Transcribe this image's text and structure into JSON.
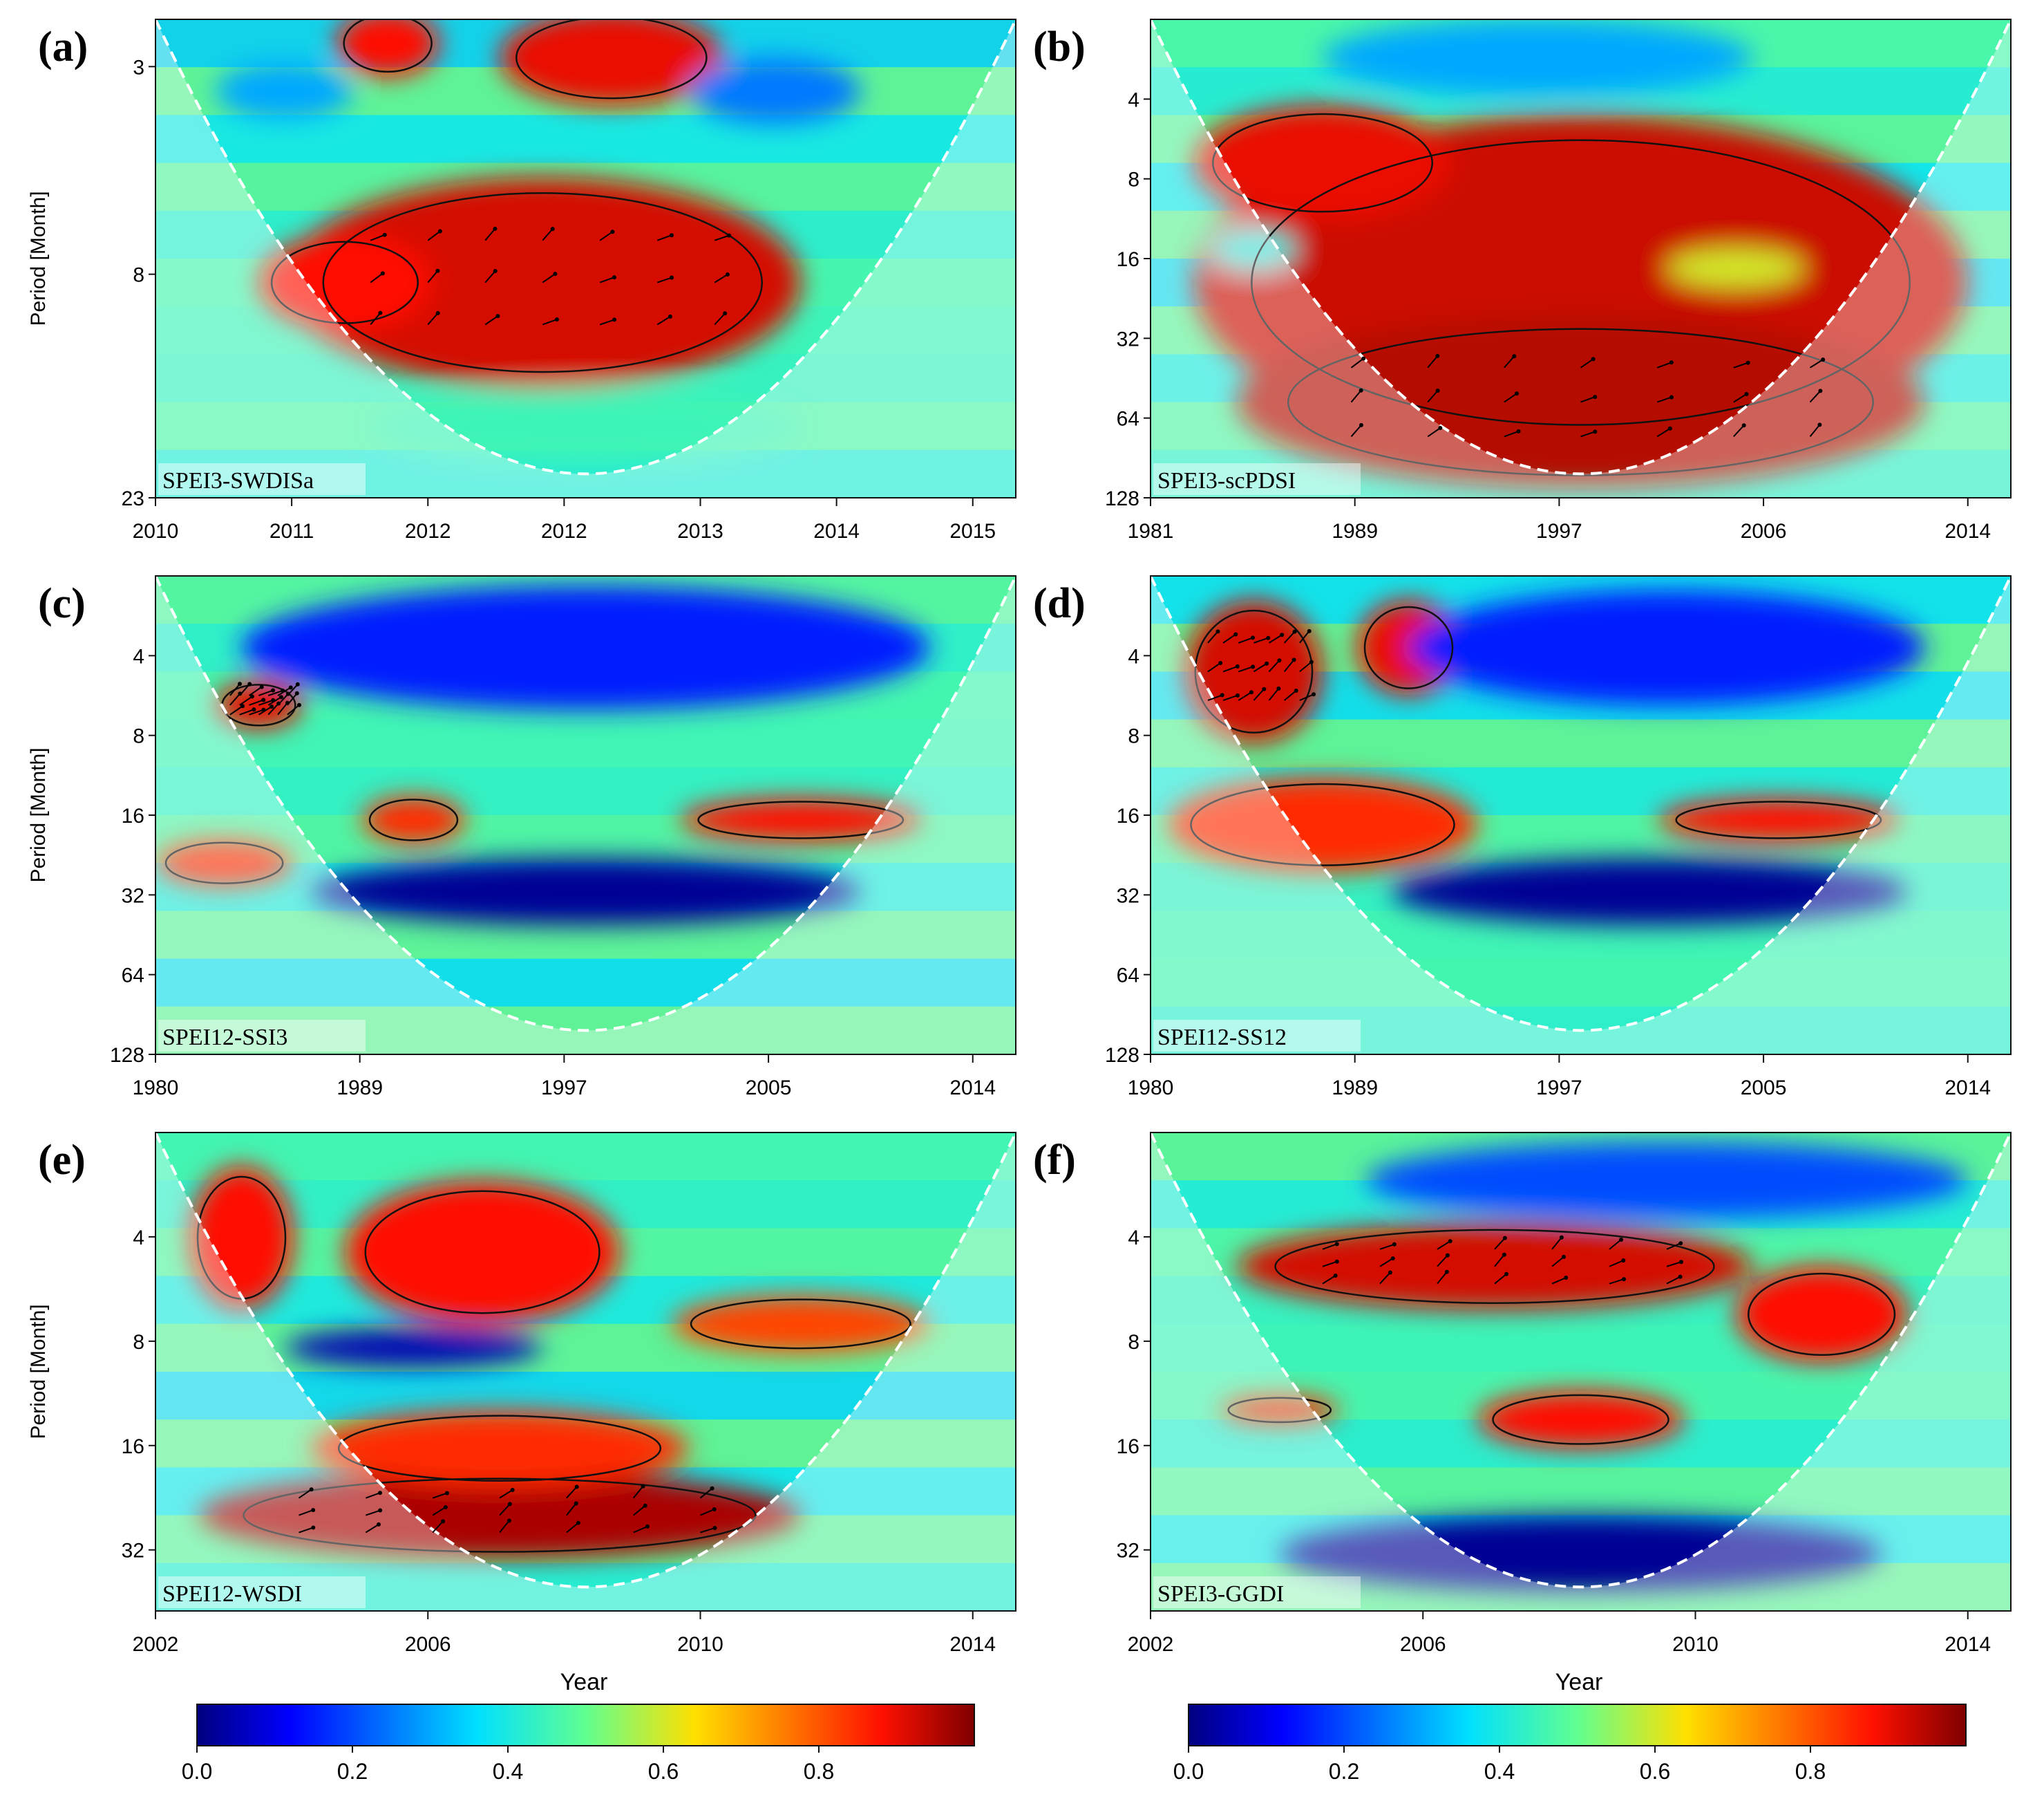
{
  "figure": {
    "y_axis_title": "Period [Month]",
    "x_axis_title": "Year"
  },
  "colorbars": [
    {
      "ticks": [
        "0.0",
        "0.2",
        "0.4",
        "0.6",
        "0.8"
      ],
      "range": [
        0,
        1
      ]
    },
    {
      "ticks": [
        "0.0",
        "0.2",
        "0.4",
        "0.6",
        "0.8"
      ],
      "range": [
        0,
        1
      ]
    }
  ],
  "chart_data": [
    {
      "type": "heatmap",
      "panel_label": "(a)",
      "title": "SPEI3-SWDISa",
      "xlabel": "",
      "ylabel": "Period [Month]",
      "x_ticks": [
        "2010",
        "2011",
        "2012",
        "2012",
        "2013",
        "2014",
        "2015"
      ],
      "y_ticks": [
        "3",
        "8",
        "23"
      ],
      "y_range": [
        2.4,
        23
      ],
      "scale": "wavelet coherence 0-1",
      "blobs": [
        {
          "x": 0.45,
          "y": 0.55,
          "rx": 0.3,
          "ry": 0.22,
          "value": 0.92
        },
        {
          "x": 0.22,
          "y": 0.55,
          "rx": 0.1,
          "ry": 0.1,
          "value": 0.88
        },
        {
          "x": 0.53,
          "y": 0.08,
          "rx": 0.13,
          "ry": 0.1,
          "value": 0.9
        },
        {
          "x": 0.27,
          "y": 0.05,
          "rx": 0.06,
          "ry": 0.07,
          "value": 0.88
        },
        {
          "x": 0.15,
          "y": 0.15,
          "rx": 0.08,
          "ry": 0.06,
          "value": 0.3
        },
        {
          "x": 0.72,
          "y": 0.15,
          "rx": 0.1,
          "ry": 0.07,
          "value": 0.25
        },
        {
          "x": 0.5,
          "y": 0.85,
          "rx": 0.25,
          "ry": 0.08,
          "value": 0.45
        }
      ]
    },
    {
      "type": "heatmap",
      "panel_label": "(b)",
      "title": "SPEI3-scPDSI",
      "xlabel": "",
      "ylabel": "",
      "x_ticks": [
        "1981",
        "1989",
        "1997",
        "2006",
        "2014"
      ],
      "y_ticks": [
        "4",
        "8",
        "16",
        "32",
        "64",
        "128"
      ],
      "y_range": [
        2,
        128
      ],
      "scale": "wavelet coherence 0-1",
      "blobs": [
        {
          "x": 0.5,
          "y": 0.55,
          "rx": 0.45,
          "ry": 0.35,
          "value": 0.93
        },
        {
          "x": 0.5,
          "y": 0.8,
          "rx": 0.4,
          "ry": 0.18,
          "value": 0.95
        },
        {
          "x": 0.2,
          "y": 0.3,
          "rx": 0.15,
          "ry": 0.12,
          "value": 0.9
        },
        {
          "x": 0.68,
          "y": 0.52,
          "rx": 0.08,
          "ry": 0.04,
          "value": 0.6
        },
        {
          "x": 0.45,
          "y": 0.08,
          "rx": 0.25,
          "ry": 0.08,
          "value": 0.3
        },
        {
          "x": 0.12,
          "y": 0.48,
          "rx": 0.05,
          "ry": 0.04,
          "value": 0.4
        }
      ]
    },
    {
      "type": "heatmap",
      "panel_label": "(c)",
      "title": "SPEI12-SSI3",
      "xlabel": "",
      "ylabel": "Period [Month]",
      "x_ticks": [
        "1980",
        "1989",
        "1997",
        "2005",
        "2014"
      ],
      "y_ticks": [
        "4",
        "8",
        "16",
        "32",
        "64",
        "128"
      ],
      "y_range": [
        2,
        128
      ],
      "scale": "wavelet coherence 0-1",
      "blobs": [
        {
          "x": 0.5,
          "y": 0.66,
          "rx": 0.32,
          "ry": 0.07,
          "value": 0.02
        },
        {
          "x": 0.12,
          "y": 0.27,
          "rx": 0.05,
          "ry": 0.05,
          "value": 0.9
        },
        {
          "x": 0.3,
          "y": 0.51,
          "rx": 0.06,
          "ry": 0.05,
          "value": 0.85
        },
        {
          "x": 0.75,
          "y": 0.51,
          "rx": 0.14,
          "ry": 0.045,
          "value": 0.88
        },
        {
          "x": 0.08,
          "y": 0.6,
          "rx": 0.08,
          "ry": 0.05,
          "value": 0.85
        },
        {
          "x": 0.5,
          "y": 0.15,
          "rx": 0.4,
          "ry": 0.13,
          "value": 0.15
        }
      ]
    },
    {
      "type": "heatmap",
      "panel_label": "(d)",
      "title": "SPEI12-SS12",
      "xlabel": "",
      "ylabel": "",
      "x_ticks": [
        "1980",
        "1989",
        "1997",
        "2005",
        "2014"
      ],
      "y_ticks": [
        "4",
        "8",
        "16",
        "32",
        "64",
        "128"
      ],
      "y_range": [
        2,
        128
      ],
      "scale": "wavelet coherence 0-1",
      "blobs": [
        {
          "x": 0.58,
          "y": 0.66,
          "rx": 0.3,
          "ry": 0.07,
          "value": 0.02
        },
        {
          "x": 0.12,
          "y": 0.2,
          "rx": 0.08,
          "ry": 0.15,
          "value": 0.92
        },
        {
          "x": 0.2,
          "y": 0.52,
          "rx": 0.18,
          "ry": 0.1,
          "value": 0.85
        },
        {
          "x": 0.3,
          "y": 0.15,
          "rx": 0.06,
          "ry": 0.1,
          "value": 0.9
        },
        {
          "x": 0.73,
          "y": 0.51,
          "rx": 0.14,
          "ry": 0.045,
          "value": 0.88
        },
        {
          "x": 0.6,
          "y": 0.15,
          "rx": 0.3,
          "ry": 0.12,
          "value": 0.15
        }
      ]
    },
    {
      "type": "heatmap",
      "panel_label": "(e)",
      "title": "SPEI12-WSDI",
      "xlabel": "Year",
      "ylabel": "Period [Month]",
      "x_ticks": [
        "2002",
        "2006",
        "2010",
        "2014"
      ],
      "y_ticks": [
        "4",
        "8",
        "16",
        "32"
      ],
      "y_range": [
        2,
        48
      ],
      "scale": "wavelet coherence 0-1",
      "blobs": [
        {
          "x": 0.4,
          "y": 0.8,
          "rx": 0.35,
          "ry": 0.09,
          "value": 0.96
        },
        {
          "x": 0.4,
          "y": 0.66,
          "rx": 0.22,
          "ry": 0.08,
          "value": 0.85
        },
        {
          "x": 0.38,
          "y": 0.25,
          "rx": 0.16,
          "ry": 0.15,
          "value": 0.88
        },
        {
          "x": 0.1,
          "y": 0.22,
          "rx": 0.06,
          "ry": 0.15,
          "value": 0.88
        },
        {
          "x": 0.75,
          "y": 0.4,
          "rx": 0.15,
          "ry": 0.06,
          "value": 0.82
        },
        {
          "x": 0.3,
          "y": 0.45,
          "rx": 0.15,
          "ry": 0.04,
          "value": 0.05
        }
      ]
    },
    {
      "type": "heatmap",
      "panel_label": "(f)",
      "title": "SPEI3-GGDI",
      "xlabel": "Year",
      "ylabel": "",
      "x_ticks": [
        "2002",
        "2006",
        "2010",
        "2014"
      ],
      "y_ticks": [
        "4",
        "8",
        "16",
        "32"
      ],
      "y_range": [
        2,
        48
      ],
      "scale": "wavelet coherence 0-1",
      "blobs": [
        {
          "x": 0.5,
          "y": 0.88,
          "rx": 0.35,
          "ry": 0.08,
          "value": 0.02
        },
        {
          "x": 0.4,
          "y": 0.28,
          "rx": 0.3,
          "ry": 0.09,
          "value": 0.92
        },
        {
          "x": 0.78,
          "y": 0.38,
          "rx": 0.1,
          "ry": 0.1,
          "value": 0.88
        },
        {
          "x": 0.5,
          "y": 0.6,
          "rx": 0.12,
          "ry": 0.06,
          "value": 0.88
        },
        {
          "x": 0.15,
          "y": 0.58,
          "rx": 0.07,
          "ry": 0.03,
          "value": 0.85
        },
        {
          "x": 0.6,
          "y": 0.1,
          "rx": 0.35,
          "ry": 0.08,
          "value": 0.2
        }
      ]
    }
  ]
}
